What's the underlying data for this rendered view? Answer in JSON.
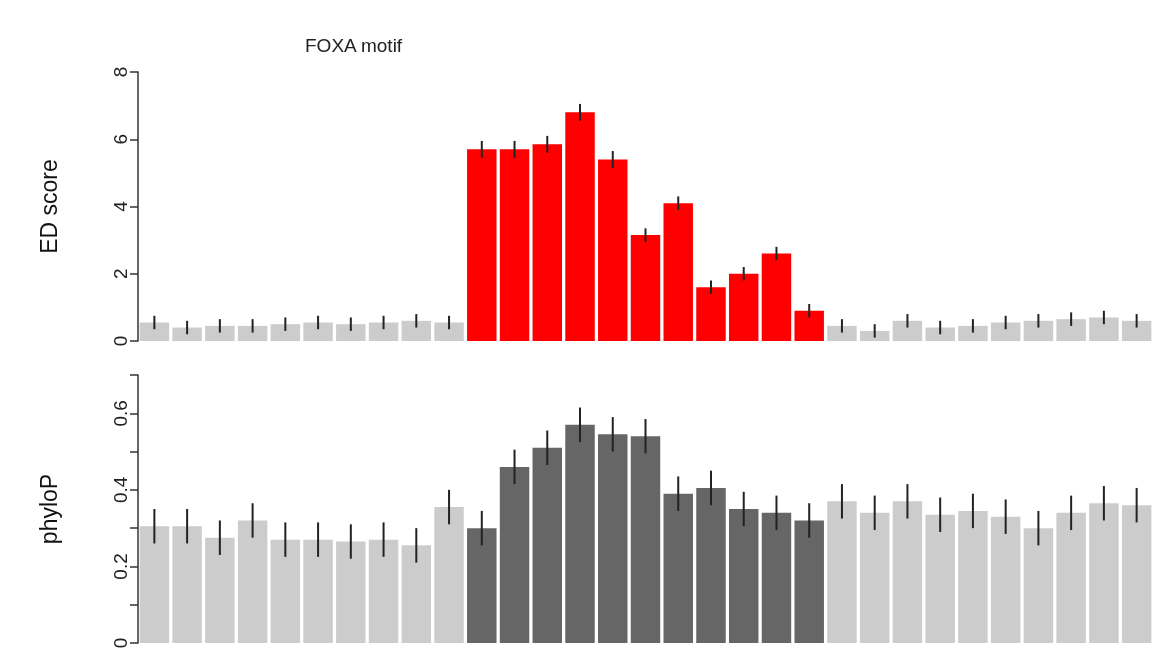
{
  "chart_data": [
    {
      "type": "bar",
      "ylabel": "ED score",
      "annotations": [
        "FOXA motif"
      ],
      "categories": [
        null,
        null,
        null,
        null,
        null,
        null,
        null,
        null,
        null,
        null,
        null,
        null,
        null,
        null,
        null,
        null,
        null,
        null,
        null,
        null,
        null,
        null,
        null,
        null,
        null,
        null,
        null,
        null,
        null,
        null,
        null
      ],
      "values": [
        0.55,
        0.4,
        0.45,
        0.45,
        0.5,
        0.55,
        0.5,
        0.55,
        0.6,
        0.55,
        5.7,
        5.7,
        5.85,
        6.8,
        5.4,
        3.15,
        4.1,
        1.6,
        2.0,
        2.6,
        0.9,
        0.45,
        0.3,
        0.6,
        0.4,
        0.45,
        0.55,
        0.6,
        0.65,
        0.7,
        0.6
      ],
      "errors": [
        0.2,
        0.2,
        0.2,
        0.2,
        0.2,
        0.2,
        0.2,
        0.2,
        0.2,
        0.2,
        0.25,
        0.25,
        0.25,
        0.25,
        0.25,
        0.2,
        0.2,
        0.2,
        0.2,
        0.2,
        0.2,
        0.2,
        0.2,
        0.2,
        0.2,
        0.2,
        0.2,
        0.2,
        0.2,
        0.2,
        0.2
      ],
      "colors": [
        "#cccccc",
        "#cccccc",
        "#cccccc",
        "#cccccc",
        "#cccccc",
        "#cccccc",
        "#cccccc",
        "#cccccc",
        "#cccccc",
        "#cccccc",
        "#ff0000",
        "#ff0000",
        "#ff0000",
        "#ff0000",
        "#ff0000",
        "#ff0000",
        "#ff0000",
        "#ff0000",
        "#ff0000",
        "#ff0000",
        "#ff0000",
        "#cccccc",
        "#cccccc",
        "#cccccc",
        "#cccccc",
        "#cccccc",
        "#cccccc",
        "#cccccc",
        "#cccccc",
        "#cccccc",
        "#cccccc"
      ],
      "ylim": [
        0,
        8
      ],
      "yticks": [
        0,
        2,
        4,
        6,
        8
      ],
      "grid": false,
      "tick_labels": "y"
    },
    {
      "type": "bar",
      "ylabel": "phyloP",
      "categories": [
        null,
        null,
        null,
        null,
        null,
        null,
        null,
        null,
        null,
        null,
        null,
        null,
        null,
        null,
        null,
        null,
        null,
        null,
        null,
        null,
        null,
        null,
        null,
        null,
        null,
        null,
        null,
        null,
        null,
        null,
        null
      ],
      "values": [
        0.305,
        0.305,
        0.275,
        0.32,
        0.27,
        0.27,
        0.265,
        0.27,
        0.255,
        0.355,
        0.3,
        0.46,
        0.51,
        0.57,
        0.545,
        0.54,
        0.39,
        0.405,
        0.35,
        0.34,
        0.32,
        0.37,
        0.34,
        0.37,
        0.335,
        0.345,
        0.33,
        0.3,
        0.34,
        0.365,
        0.36
      ],
      "errors": [
        0.045,
        0.045,
        0.045,
        0.045,
        0.045,
        0.045,
        0.045,
        0.045,
        0.045,
        0.045,
        0.045,
        0.045,
        0.045,
        0.045,
        0.045,
        0.045,
        0.045,
        0.045,
        0.045,
        0.045,
        0.045,
        0.045,
        0.045,
        0.045,
        0.045,
        0.045,
        0.045,
        0.045,
        0.045,
        0.045,
        0.045
      ],
      "colors": [
        "#cccccc",
        "#cccccc",
        "#cccccc",
        "#cccccc",
        "#cccccc",
        "#cccccc",
        "#cccccc",
        "#cccccc",
        "#cccccc",
        "#cccccc",
        "#666666",
        "#666666",
        "#666666",
        "#666666",
        "#666666",
        "#666666",
        "#666666",
        "#666666",
        "#666666",
        "#666666",
        "#666666",
        "#cccccc",
        "#cccccc",
        "#cccccc",
        "#cccccc",
        "#cccccc",
        "#cccccc",
        "#cccccc",
        "#cccccc",
        "#cccccc",
        "#cccccc"
      ],
      "ylim": [
        0,
        0.7
      ],
      "yticks": [
        0,
        {
          "value": 0.1,
          "label": null
        },
        0.2,
        {
          "value": 0.3,
          "label": null
        },
        0.4,
        {
          "value": 0.5,
          "label": null
        },
        0.6,
        {
          "value": 0.7,
          "label": null
        }
      ],
      "grid": false,
      "tick_labels": "y"
    }
  ]
}
